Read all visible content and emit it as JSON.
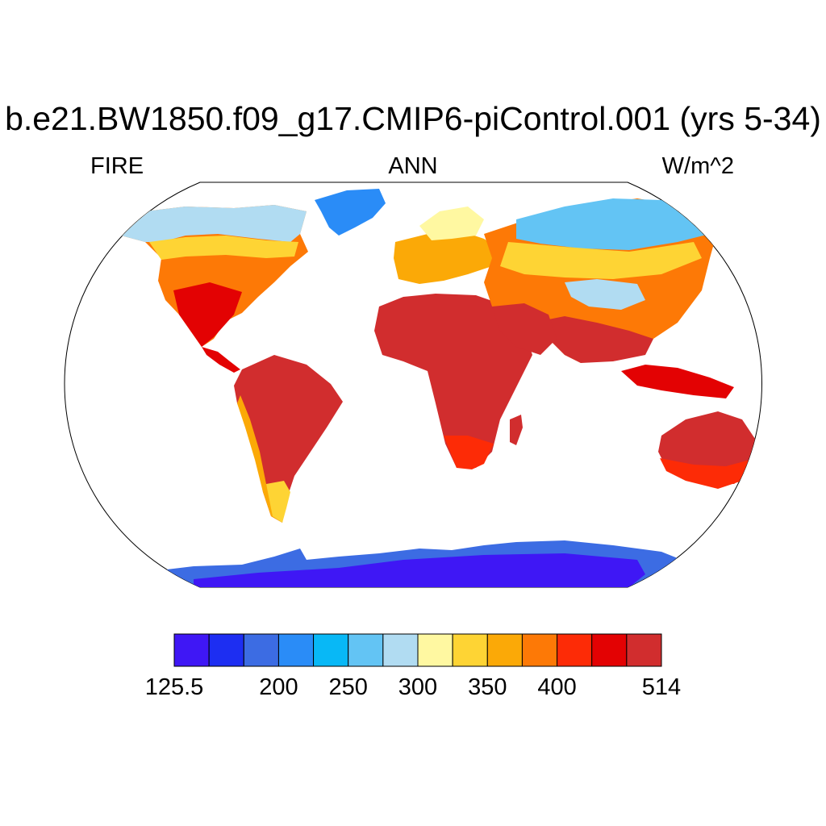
{
  "title": "b.e21.BW1850.f09_g17.CMIP6-piControl.001 (yrs 5-34)",
  "subtitle_left": "FIRE",
  "subtitle_center": "ANN",
  "subtitle_right": "W/m^2",
  "colorbar": {
    "colors": [
      "#3f17f5",
      "#1d2ef2",
      "#3c6ce3",
      "#2a8cf7",
      "#08b8f6",
      "#63c4f4",
      "#b1dcf2",
      "#fff8a1",
      "#fed434",
      "#fba907",
      "#fd7906",
      "#fd2b06",
      "#e30203",
      "#d12d2e"
    ],
    "labels": [
      {
        "text": "125.5",
        "boundary": 0
      },
      {
        "text": "200",
        "boundary": 3
      },
      {
        "text": "250",
        "boundary": 5
      },
      {
        "text": "300",
        "boundary": 7
      },
      {
        "text": "350",
        "boundary": 9
      },
      {
        "text": "400",
        "boundary": 11
      },
      {
        "text": "514",
        "boundary": 14
      }
    ]
  }
}
